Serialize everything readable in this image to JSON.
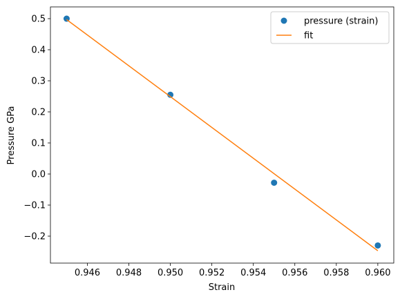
{
  "chart_data": {
    "type": "scatter",
    "x_label": "Strain",
    "y_label": "Pressure GPa",
    "xlim": [
      0.94422,
      0.96077
    ],
    "ylim": [
      -0.2867,
      0.5378
    ],
    "xticks": [
      0.946,
      0.948,
      {
        "value": 0.95,
        "label": "0.950"
      },
      0.952,
      0.954,
      0.956,
      0.958,
      {
        "value": 0.96,
        "label": "0.960"
      }
    ],
    "yticks": [
      {
        "value": -0.2,
        "label": "−0.2"
      },
      {
        "value": -0.1,
        "label": "−0.1"
      },
      {
        "value": 0,
        "label": "0.0"
      },
      0.1,
      0.2,
      0.3,
      0.4,
      0.5
    ],
    "legend": "upper right",
    "series": [
      {
        "name": "pressure (strain)",
        "type": "scatter",
        "color": "#1f77b4",
        "x": [
          0.945,
          0.95,
          0.955,
          0.96
        ],
        "values": [
          0.5,
          0.255,
          -0.028,
          -0.23
        ]
      },
      {
        "name": "fit",
        "type": "line",
        "color": "#ff7f0e",
        "x": [
          0.945,
          0.96
        ],
        "values": [
          0.497,
          -0.247
        ]
      }
    ]
  }
}
